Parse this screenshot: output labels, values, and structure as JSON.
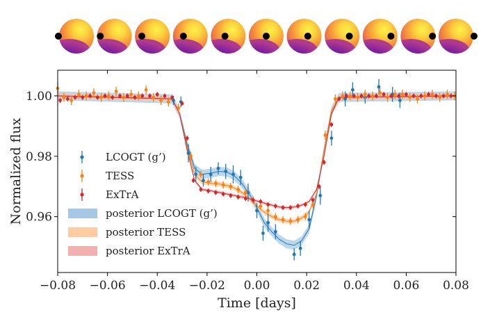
{
  "chart_data": {
    "type": "scatter",
    "xlabel": "Time [days]",
    "ylabel": "Normalized flux",
    "xlim": [
      -0.08,
      0.08
    ],
    "ylim": [
      0.9415,
      1.0085
    ],
    "x_ticks": [
      -0.08,
      -0.06,
      -0.04,
      -0.02,
      0.0,
      0.02,
      0.04,
      0.06,
      0.08
    ],
    "x_tick_labels": [
      "−0.08",
      "−0.06",
      "−0.04",
      "−0.02",
      "0.00",
      "0.02",
      "0.04",
      "0.06",
      "0.08"
    ],
    "y_ticks": [
      0.96,
      0.98,
      1.0
    ],
    "y_tick_labels": [
      "0.96",
      "0.98",
      "1.00"
    ],
    "grid": false,
    "legend_position": "left",
    "star_phases": [
      -0.056,
      -0.043,
      -0.031,
      -0.019,
      -0.007,
      0.004,
      0.016,
      0.028,
      0.04,
      0.052,
      0.064
    ],
    "series": [
      {
        "name": "LCOGT (g’)",
        "color": "#1f77b4",
        "points": [
          {
            "x": -0.0335,
            "y": 0.9985,
            "e": 0.0015
          },
          {
            "x": -0.0305,
            "y": 0.998,
            "e": 0.0018
          },
          {
            "x": -0.0275,
            "y": 0.981,
            "e": 0.003
          },
          {
            "x": -0.0245,
            "y": 0.974,
            "e": 0.0025
          },
          {
            "x": -0.0215,
            "y": 0.972,
            "e": 0.002
          },
          {
            "x": -0.0185,
            "y": 0.974,
            "e": 0.0025
          },
          {
            "x": -0.0155,
            "y": 0.976,
            "e": 0.002
          },
          {
            "x": -0.0125,
            "y": 0.975,
            "e": 0.0025
          },
          {
            "x": -0.0095,
            "y": 0.974,
            "e": 0.003
          },
          {
            "x": -0.0065,
            "y": 0.973,
            "e": 0.0025
          },
          {
            "x": -0.0035,
            "y": 0.968,
            "e": 0.003
          },
          {
            "x": 0.0,
            "y": 0.962,
            "e": 0.0025
          },
          {
            "x": 0.0025,
            "y": 0.9545,
            "e": 0.0025
          },
          {
            "x": 0.0045,
            "y": 0.958,
            "e": 0.003
          },
          {
            "x": 0.0075,
            "y": 0.955,
            "e": 0.0025
          },
          {
            "x": 0.015,
            "y": 0.9475,
            "e": 0.002
          },
          {
            "x": 0.0175,
            "y": 0.9495,
            "e": 0.0025
          },
          {
            "x": 0.021,
            "y": 0.959,
            "e": 0.003
          },
          {
            "x": 0.0255,
            "y": 0.967,
            "e": 0.003
          },
          {
            "x": 0.03,
            "y": 0.986,
            "e": 0.0025
          },
          {
            "x": 0.0355,
            "y": 0.999,
            "e": 0.0025
          },
          {
            "x": 0.0385,
            "y": 1.002,
            "e": 0.0025
          },
          {
            "x": 0.0435,
            "y": 0.9995,
            "e": 0.002
          },
          {
            "x": 0.049,
            "y": 1.003,
            "e": 0.0025
          },
          {
            "x": 0.0545,
            "y": 1.0005,
            "e": 0.0025
          },
          {
            "x": 0.0575,
            "y": 0.9985,
            "e": 0.0025
          }
        ]
      },
      {
        "name": "TESS",
        "color": "#ff7f0e",
        "points": [
          {
            "x": -0.08,
            "y": 1.0025,
            "e": 0.002
          },
          {
            "x": -0.0775,
            "y": 0.9995,
            "e": 0.0015
          },
          {
            "x": -0.0745,
            "y": 0.9985,
            "e": 0.0015
          },
          {
            "x": -0.0715,
            "y": 1.0005,
            "e": 0.0015
          },
          {
            "x": -0.0685,
            "y": 1.0,
            "e": 0.0015
          },
          {
            "x": -0.0655,
            "y": 1.001,
            "e": 0.0015
          },
          {
            "x": -0.0625,
            "y": 0.9995,
            "e": 0.0015
          },
          {
            "x": -0.0595,
            "y": 1.0,
            "e": 0.0015
          },
          {
            "x": -0.0565,
            "y": 1.0015,
            "e": 0.0015
          },
          {
            "x": -0.0535,
            "y": 0.9995,
            "e": 0.0015
          },
          {
            "x": -0.0505,
            "y": 1.0005,
            "e": 0.0015
          },
          {
            "x": -0.0475,
            "y": 1.0,
            "e": 0.0015
          },
          {
            "x": -0.0445,
            "y": 1.002,
            "e": 0.0015
          },
          {
            "x": -0.0415,
            "y": 0.9995,
            "e": 0.0015
          },
          {
            "x": -0.0385,
            "y": 0.9985,
            "e": 0.0015
          },
          {
            "x": -0.0355,
            "y": 0.998,
            "e": 0.0015
          },
          {
            "x": -0.0315,
            "y": 0.996,
            "e": 0.0015
          },
          {
            "x": -0.0265,
            "y": 0.98,
            "e": 0.0015
          },
          {
            "x": -0.0225,
            "y": 0.974,
            "e": 0.0012
          },
          {
            "x": -0.0195,
            "y": 0.9715,
            "e": 0.0012
          },
          {
            "x": -0.0165,
            "y": 0.971,
            "e": 0.0012
          },
          {
            "x": -0.0135,
            "y": 0.9705,
            "e": 0.0012
          },
          {
            "x": -0.0105,
            "y": 0.97,
            "e": 0.0012
          },
          {
            "x": -0.0075,
            "y": 0.969,
            "e": 0.0012
          },
          {
            "x": -0.0045,
            "y": 0.968,
            "e": 0.0012
          },
          {
            "x": -0.0015,
            "y": 0.9655,
            "e": 0.0012
          },
          {
            "x": 0.0015,
            "y": 0.9635,
            "e": 0.0012
          },
          {
            "x": 0.0045,
            "y": 0.962,
            "e": 0.0012
          },
          {
            "x": 0.0075,
            "y": 0.96,
            "e": 0.0012
          },
          {
            "x": 0.0105,
            "y": 0.959,
            "e": 0.0012
          },
          {
            "x": 0.0135,
            "y": 0.9585,
            "e": 0.0012
          },
          {
            "x": 0.0165,
            "y": 0.959,
            "e": 0.0012
          },
          {
            "x": 0.0195,
            "y": 0.96,
            "e": 0.0012
          },
          {
            "x": 0.0225,
            "y": 0.964,
            "e": 0.0012
          },
          {
            "x": 0.0275,
            "y": 0.987,
            "e": 0.0015
          },
          {
            "x": 0.0315,
            "y": 0.999,
            "e": 0.0015
          },
          {
            "x": 0.0345,
            "y": 1.0,
            "e": 0.0015
          },
          {
            "x": 0.0375,
            "y": 1.0,
            "e": 0.0015
          },
          {
            "x": 0.0405,
            "y": 0.9995,
            "e": 0.0015
          },
          {
            "x": 0.0435,
            "y": 1.0005,
            "e": 0.0015
          },
          {
            "x": 0.0465,
            "y": 1.0,
            "e": 0.0015
          },
          {
            "x": 0.0495,
            "y": 1.001,
            "e": 0.0015
          },
          {
            "x": 0.0525,
            "y": 0.9995,
            "e": 0.0015
          },
          {
            "x": 0.0555,
            "y": 1.0005,
            "e": 0.0015
          },
          {
            "x": 0.0585,
            "y": 1.0005,
            "e": 0.0015
          },
          {
            "x": 0.0615,
            "y": 0.9995,
            "e": 0.0015
          },
          {
            "x": 0.0645,
            "y": 0.999,
            "e": 0.0015
          },
          {
            "x": 0.0675,
            "y": 1.0,
            "e": 0.0015
          },
          {
            "x": 0.0705,
            "y": 1.0005,
            "e": 0.0015
          },
          {
            "x": 0.0735,
            "y": 0.9995,
            "e": 0.0015
          },
          {
            "x": 0.0765,
            "y": 1.0005,
            "e": 0.0015
          },
          {
            "x": 0.0795,
            "y": 1.0,
            "e": 0.0015
          }
        ]
      },
      {
        "name": "ExTrA",
        "color": "#d62728",
        "points": [
          {
            "x": -0.079,
            "y": 0.9985,
            "e": 0.0008
          },
          {
            "x": -0.076,
            "y": 0.999,
            "e": 0.0008
          },
          {
            "x": -0.073,
            "y": 0.9995,
            "e": 0.0008
          },
          {
            "x": -0.07,
            "y": 0.9995,
            "e": 0.0008
          },
          {
            "x": -0.067,
            "y": 1.0,
            "e": 0.0008
          },
          {
            "x": -0.064,
            "y": 0.9995,
            "e": 0.0008
          },
          {
            "x": -0.061,
            "y": 1.0,
            "e": 0.0008
          },
          {
            "x": -0.058,
            "y": 0.9995,
            "e": 0.0008
          },
          {
            "x": -0.055,
            "y": 1.0,
            "e": 0.0008
          },
          {
            "x": -0.052,
            "y": 1.0,
            "e": 0.0008
          },
          {
            "x": -0.049,
            "y": 0.9995,
            "e": 0.0008
          },
          {
            "x": -0.046,
            "y": 1.0,
            "e": 0.0008
          },
          {
            "x": -0.043,
            "y": 1.0,
            "e": 0.0008
          },
          {
            "x": -0.04,
            "y": 1.0005,
            "e": 0.0008
          },
          {
            "x": -0.037,
            "y": 1.0,
            "e": 0.0008
          },
          {
            "x": -0.034,
            "y": 0.9995,
            "e": 0.0008
          },
          {
            "x": -0.03,
            "y": 0.9975,
            "e": 0.0008
          },
          {
            "x": -0.028,
            "y": 0.986,
            "e": 0.0008
          },
          {
            "x": -0.0255,
            "y": 0.972,
            "e": 0.0008
          },
          {
            "x": -0.0225,
            "y": 0.969,
            "e": 0.0008
          },
          {
            "x": -0.0195,
            "y": 0.9685,
            "e": 0.0008
          },
          {
            "x": -0.0165,
            "y": 0.968,
            "e": 0.0008
          },
          {
            "x": -0.0135,
            "y": 0.9675,
            "e": 0.0008
          },
          {
            "x": -0.0105,
            "y": 0.967,
            "e": 0.0008
          },
          {
            "x": -0.0075,
            "y": 0.9665,
            "e": 0.0008
          },
          {
            "x": -0.0045,
            "y": 0.966,
            "e": 0.0008
          },
          {
            "x": -0.0015,
            "y": 0.9655,
            "e": 0.0008
          },
          {
            "x": 0.0015,
            "y": 0.965,
            "e": 0.0008
          },
          {
            "x": 0.0045,
            "y": 0.964,
            "e": 0.0008
          },
          {
            "x": 0.0075,
            "y": 0.9635,
            "e": 0.0008
          },
          {
            "x": 0.0105,
            "y": 0.963,
            "e": 0.0008
          },
          {
            "x": 0.0135,
            "y": 0.963,
            "e": 0.0008
          },
          {
            "x": 0.0165,
            "y": 0.9635,
            "e": 0.0008
          },
          {
            "x": 0.0195,
            "y": 0.964,
            "e": 0.0008
          },
          {
            "x": 0.0225,
            "y": 0.9655,
            "e": 0.0008
          },
          {
            "x": 0.025,
            "y": 0.97,
            "e": 0.0008
          },
          {
            "x": 0.027,
            "y": 0.978,
            "e": 0.0008
          },
          {
            "x": 0.03,
            "y": 0.9905,
            "e": 0.0008
          },
          {
            "x": 0.033,
            "y": 0.999,
            "e": 0.0008
          },
          {
            "x": 0.036,
            "y": 1.0,
            "e": 0.0008
          },
          {
            "x": 0.039,
            "y": 1.0,
            "e": 0.0008
          },
          {
            "x": 0.042,
            "y": 1.0,
            "e": 0.0008
          },
          {
            "x": 0.045,
            "y": 1.0,
            "e": 0.0008
          },
          {
            "x": 0.048,
            "y": 1.0,
            "e": 0.0008
          },
          {
            "x": 0.051,
            "y": 1.0005,
            "e": 0.0008
          },
          {
            "x": 0.054,
            "y": 1.0,
            "e": 0.0008
          },
          {
            "x": 0.057,
            "y": 1.0,
            "e": 0.0008
          },
          {
            "x": 0.06,
            "y": 1.0005,
            "e": 0.0008
          },
          {
            "x": 0.063,
            "y": 1.0,
            "e": 0.0008
          },
          {
            "x": 0.066,
            "y": 1.0,
            "e": 0.0008
          },
          {
            "x": 0.069,
            "y": 1.0005,
            "e": 0.0008
          },
          {
            "x": 0.072,
            "y": 1.0,
            "e": 0.0008
          },
          {
            "x": 0.075,
            "y": 1.0,
            "e": 0.0008
          },
          {
            "x": 0.078,
            "y": 1.0,
            "e": 0.0008
          }
        ]
      }
    ],
    "models": [
      {
        "name": "posterior LCOGT (g’)",
        "color": "#1f77b4",
        "band_color": "#a6c8e4",
        "band_width": 0.0015,
        "x": [
          -0.08,
          -0.034,
          -0.031,
          -0.028,
          -0.025,
          -0.022,
          -0.018,
          -0.015,
          -0.012,
          -0.009,
          -0.006,
          -0.003,
          0.0,
          0.003,
          0.006,
          0.009,
          0.012,
          0.015,
          0.018,
          0.021,
          0.024,
          0.027,
          0.03,
          0.033,
          0.08
        ],
        "y": [
          1.0,
          0.999,
          0.994,
          0.984,
          0.976,
          0.974,
          0.9745,
          0.975,
          0.9748,
          0.9735,
          0.971,
          0.9675,
          0.963,
          0.958,
          0.955,
          0.9525,
          0.951,
          0.9505,
          0.952,
          0.956,
          0.967,
          0.982,
          0.995,
          0.9995,
          1.0
        ]
      },
      {
        "name": "posterior TESS",
        "color": "#ff7f0e",
        "band_color": "#ffcba0",
        "band_width": 0.0008,
        "x": [
          -0.08,
          -0.034,
          -0.031,
          -0.028,
          -0.025,
          -0.022,
          -0.018,
          -0.015,
          -0.012,
          -0.009,
          -0.006,
          -0.003,
          0.0,
          0.003,
          0.006,
          0.009,
          0.012,
          0.015,
          0.018,
          0.021,
          0.024,
          0.027,
          0.03,
          0.033,
          0.08
        ],
        "y": [
          1.0,
          0.999,
          0.994,
          0.983,
          0.974,
          0.9715,
          0.971,
          0.9708,
          0.9703,
          0.9695,
          0.968,
          0.966,
          0.9635,
          0.9615,
          0.96,
          0.959,
          0.9585,
          0.9585,
          0.9595,
          0.9615,
          0.9675,
          0.982,
          0.995,
          0.9995,
          1.0
        ]
      },
      {
        "name": "posterior ExTrA",
        "color": "#d62728",
        "band_color": "#f2b1b1",
        "band_width": 0.0005,
        "x": [
          -0.08,
          -0.034,
          -0.031,
          -0.028,
          -0.025,
          -0.022,
          -0.018,
          -0.015,
          -0.012,
          -0.009,
          -0.006,
          -0.003,
          0.0,
          0.003,
          0.006,
          0.009,
          0.012,
          0.015,
          0.018,
          0.021,
          0.024,
          0.027,
          0.03,
          0.033,
          0.08
        ],
        "y": [
          1.0,
          0.999,
          0.994,
          0.982,
          0.972,
          0.969,
          0.9685,
          0.968,
          0.9675,
          0.967,
          0.9665,
          0.966,
          0.9652,
          0.9645,
          0.9638,
          0.9632,
          0.963,
          0.9632,
          0.9638,
          0.965,
          0.969,
          0.98,
          0.994,
          0.9995,
          1.0
        ]
      }
    ],
    "legend": {
      "entries": [
        {
          "label": "LCOGT (g’)",
          "kind": "errorbar",
          "color": "#1f77b4"
        },
        {
          "label": "TESS",
          "kind": "errorbar",
          "color": "#ff7f0e"
        },
        {
          "label": "ExTrA",
          "kind": "errorbar",
          "color": "#d62728"
        },
        {
          "label": "posterior LCOGT (g’)",
          "kind": "band",
          "color": "#a6c8e4"
        },
        {
          "label": "posterior TESS",
          "kind": "band",
          "color": "#ffcba0"
        },
        {
          "label": "posterior ExTrA",
          "kind": "band",
          "color": "#f2b1b1"
        }
      ]
    }
  }
}
